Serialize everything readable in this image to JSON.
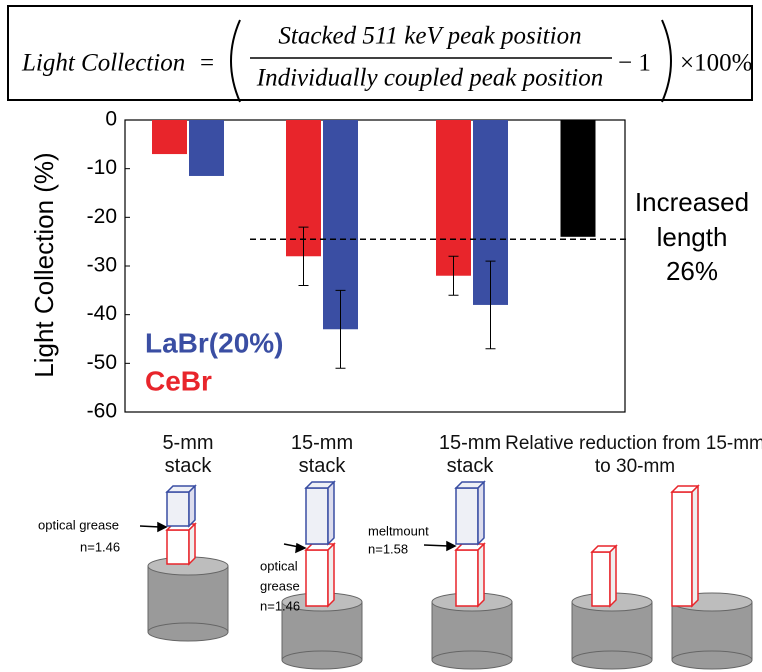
{
  "formula": {
    "lhs": "Light Collection",
    "equals": "=",
    "numerator": "Stacked 511 keV peak position",
    "denominator": "Individually coupled peak position",
    "minus_one": "− 1",
    "factor": "×100%"
  },
  "chart_data": {
    "type": "bar",
    "y_label": "Light Collection (%)",
    "categories": [
      "5-mm stack",
      "15-mm stack",
      "15-mm stack",
      "Relative reduction from 15-mm to 30-mm"
    ],
    "series": [
      {
        "name": "CeBr",
        "color": "#e8252b",
        "values": [
          -7,
          -28,
          -32,
          null
        ],
        "errors": [
          null,
          6,
          4,
          null
        ]
      },
      {
        "name": "LaBr(20%)",
        "color": "#3a4ea3",
        "values": [
          -11.5,
          -43,
          -38,
          null
        ],
        "errors": [
          null,
          8,
          9,
          null
        ]
      }
    ],
    "reference_bar": {
      "color": "#000000",
      "values": [
        null,
        null,
        null,
        -24
      ]
    },
    "reference_line": {
      "value": -24.5
    },
    "annotation": [
      "Increased",
      "length",
      "26%"
    ],
    "ylim": [
      -60,
      0
    ],
    "yticks": [
      0,
      -10,
      -20,
      -30,
      -40,
      -50,
      -60
    ]
  },
  "diagram": {
    "labels": [
      [
        "optical grease",
        "n=1.46"
      ],
      [
        "optical",
        "grease",
        "n=1.46"
      ],
      [
        "meltmount",
        "n=1.58"
      ]
    ]
  }
}
